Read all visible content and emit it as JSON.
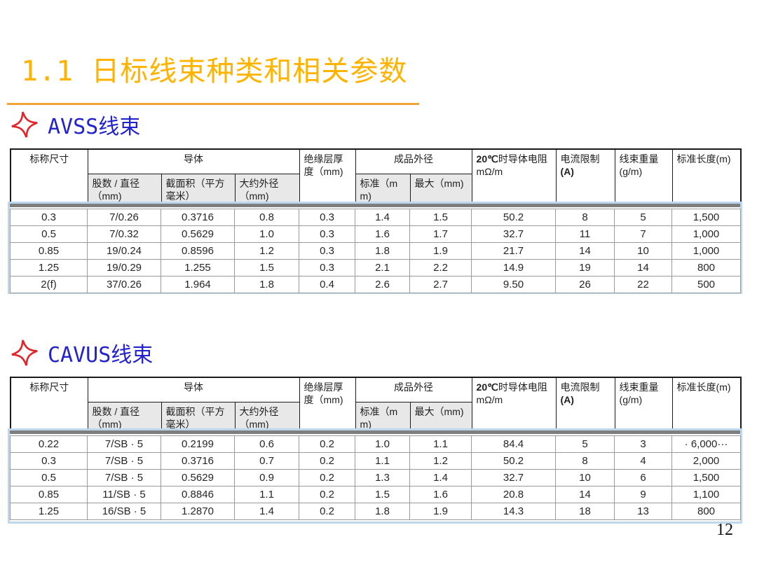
{
  "title": {
    "text": "1.1 日标线束种类和相关参数"
  },
  "page": {
    "page_number": "12"
  },
  "sections": [
    {
      "label": "AVSS线束",
      "columns": {
        "nominal": "标称尺寸",
        "conductor_group": "导体",
        "strands": "股数 / 直径（mm)",
        "area": "截面积（平方毫米）",
        "approx_od": "大约外径（mm)",
        "insulation": "绝缘层厚度（mm)",
        "finished_group": "成品外径",
        "std": "标准（mm)",
        "max": "最大（mm)",
        "resistance_bold": "20℃",
        "resistance_text": "时导体电阻",
        "resistance_unit": "mΩ/m",
        "current_label": "电流限制",
        "current_paren": "(A)",
        "weight": "线束重量 (g/m)",
        "length": "标准长度(m)"
      },
      "rows": [
        [
          "0.3",
          "7/0.26",
          "0.3716",
          "0.8",
          "0.3",
          "1.4",
          "1.5",
          "50.2",
          "8",
          "5",
          "1,500"
        ],
        [
          "0.5",
          "7/0.32",
          "0.5629",
          "1.0",
          "0.3",
          "1.6",
          "1.7",
          "32.7",
          "11",
          "7",
          "1,000"
        ],
        [
          "0.85",
          "19/0.24",
          "0.8596",
          "1.2",
          "0.3",
          "1.8",
          "1.9",
          "21.7",
          "14",
          "10",
          "1,000"
        ],
        [
          "1.25",
          "19/0.29",
          "1.255",
          "1.5",
          "0.3",
          "2.1",
          "2.2",
          "14.9",
          "19",
          "14",
          "800"
        ],
        [
          "2(f)",
          "37/0.26",
          "1.964",
          "1.8",
          "0.4",
          "2.6",
          "2.7",
          "9.50",
          "26",
          "22",
          "500"
        ]
      ]
    },
    {
      "label": "CAVUS线束",
      "columns": {
        "nominal": "标称尺寸",
        "conductor_group": "导体",
        "strands": "股数 / 直径（mm)",
        "area": "截面积（平方毫米）",
        "approx_od": "大约外径（mm)",
        "insulation": "绝缘层厚度（mm)",
        "finished_group": "成品外径",
        "std": "标准（mm)",
        "max": "最大（mm)",
        "resistance_bold": "20℃",
        "resistance_text": "时导体电阻",
        "resistance_unit": "mΩ/m",
        "current_label": "电流限制",
        "current_paren": "(A)",
        "weight": "线束重量 (g/m)",
        "length": "标准长度(m)"
      },
      "rows": [
        [
          "0.22",
          "7/SB · 5",
          "0.2199",
          "0.6",
          "0.2",
          "1.0",
          "1.1",
          "84.4",
          "5",
          "3",
          "· 6,000···"
        ],
        [
          "0.3",
          "7/SB · 5",
          "0.3716",
          "0.7",
          "0.2",
          "1.1",
          "1.2",
          "50.2",
          "8",
          "4",
          "2,000"
        ],
        [
          "0.5",
          "7/SB · 5",
          "0.5629",
          "0.9",
          "0.2",
          "1.3",
          "1.4",
          "32.7",
          "10",
          "6",
          "1,500"
        ],
        [
          "0.85",
          "11/SB · 5",
          "0.8846",
          "1.1",
          "0.2",
          "1.5",
          "1.6",
          "20.8",
          "14",
          "9",
          "1,100"
        ],
        [
          "1.25",
          "16/SB · 5",
          "1.2870",
          "1.4",
          "0.2",
          "1.8",
          "1.9",
          "14.3",
          "18",
          "13",
          "800"
        ]
      ]
    }
  ]
}
